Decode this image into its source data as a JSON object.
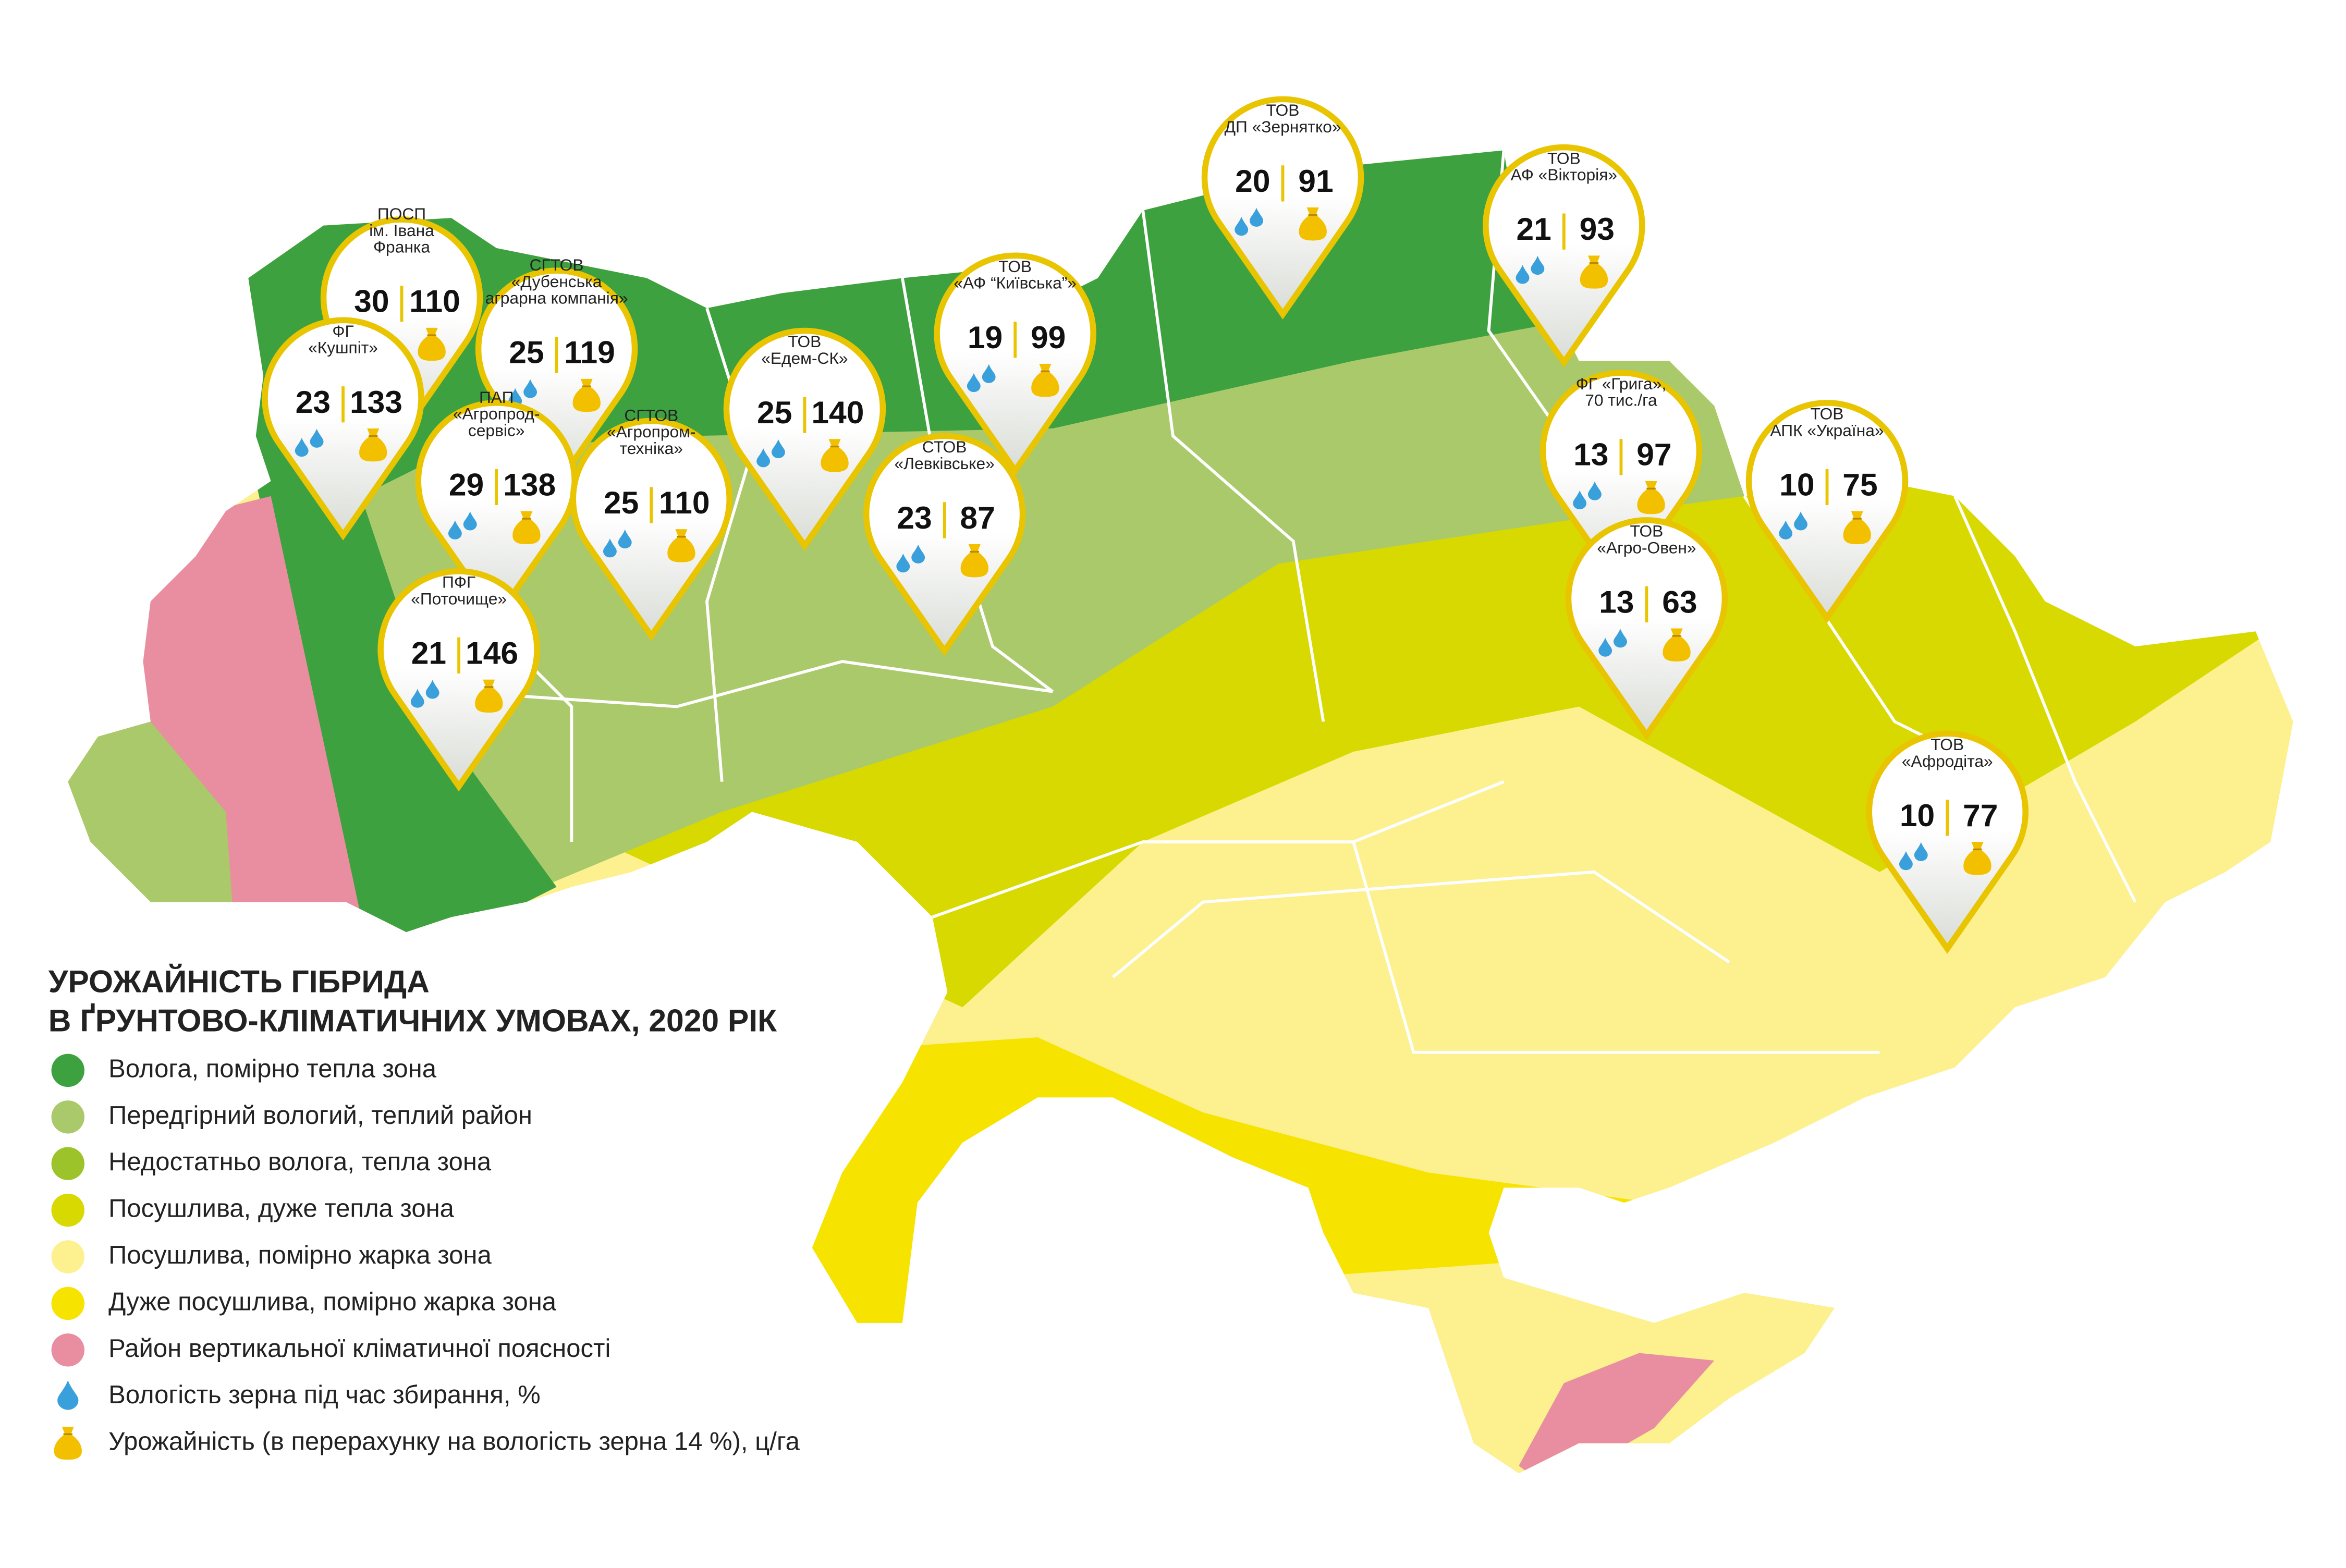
{
  "title": [
    "УРОЖАЙНІСТЬ ГІБРИДА",
    "В ҐРУНТОВО-КЛІМАТИЧНИХ УМОВАХ, 2020 РІК"
  ],
  "legend": [
    {
      "label": "Волога, помірно тепла зона",
      "color": "#3da13f"
    },
    {
      "label": "Передгірний вологий, теплий район",
      "color": "#aac96b"
    },
    {
      "label": "Недостатньо волога, тепла зона",
      "color": "#9cc329"
    },
    {
      "label": "Посушлива, дуже тепла зона",
      "color": "#d8d900"
    },
    {
      "label": "Посушлива, помірно жарка зона",
      "color": "#fcf08f"
    },
    {
      "label": "Дуже посушлива, помірно жарка зона",
      "color": "#f6e300"
    },
    {
      "label": "Район вертикальної кліматичної поясності",
      "color": "#e98da0"
    }
  ],
  "icons": [
    {
      "label": "Вологість зерна під час збирання, %"
    },
    {
      "label": "Урожайність (в перерахунку на вологість зерна 14 %), ц/га"
    }
  ],
  "pins": [
    {
      "name": [
        "ПОСП",
        "ім. Івана",
        "Франка"
      ],
      "moisture": 30,
      "yield": 110
    },
    {
      "name": [
        "СГТОВ",
        "«Дубенська",
        "аграрна компанія»"
      ],
      "moisture": 25,
      "yield": 119
    },
    {
      "name": [
        "ФГ",
        "«Кушпіт»"
      ],
      "moisture": 23,
      "yield": 133
    },
    {
      "name": [
        "ПАП",
        "«Агропрод-",
        "сервіс»"
      ],
      "moisture": 29,
      "yield": 138
    },
    {
      "name": [
        "СГТОВ",
        "«Агропром-",
        "техніка»"
      ],
      "moisture": 25,
      "yield": 110
    },
    {
      "name": [
        "ПФГ",
        "«Поточище»"
      ],
      "moisture": 21,
      "yield": 146
    },
    {
      "name": [
        "ТОВ",
        "«Едем-СК»"
      ],
      "moisture": 25,
      "yield": 140
    },
    {
      "name": [
        "ТОВ",
        "«АФ “Київська”»"
      ],
      "moisture": 19,
      "yield": 99
    },
    {
      "name": [
        "СТОВ",
        "«Левківське»"
      ],
      "moisture": 23,
      "yield": 87
    },
    {
      "name": [
        "ТОВ",
        "ДП «Зернятко»"
      ],
      "moisture": 20,
      "yield": 91
    },
    {
      "name": [
        "ТОВ",
        "АФ «Вікторія»"
      ],
      "moisture": 21,
      "yield": 93
    },
    {
      "name": [
        "ФГ «Грига»,",
        "70 тис./га"
      ],
      "moisture": 13,
      "yield": 97
    },
    {
      "name": [
        "ТОВ",
        "«Агро-Овен»"
      ],
      "moisture": 13,
      "yield": 63
    },
    {
      "name": [
        "ТОВ",
        "АПК «Україна»"
      ],
      "moisture": 10,
      "yield": 75
    },
    {
      "name": [
        "ТОВ",
        "«Афродіта»"
      ],
      "moisture": 10,
      "yield": 77
    }
  ]
}
